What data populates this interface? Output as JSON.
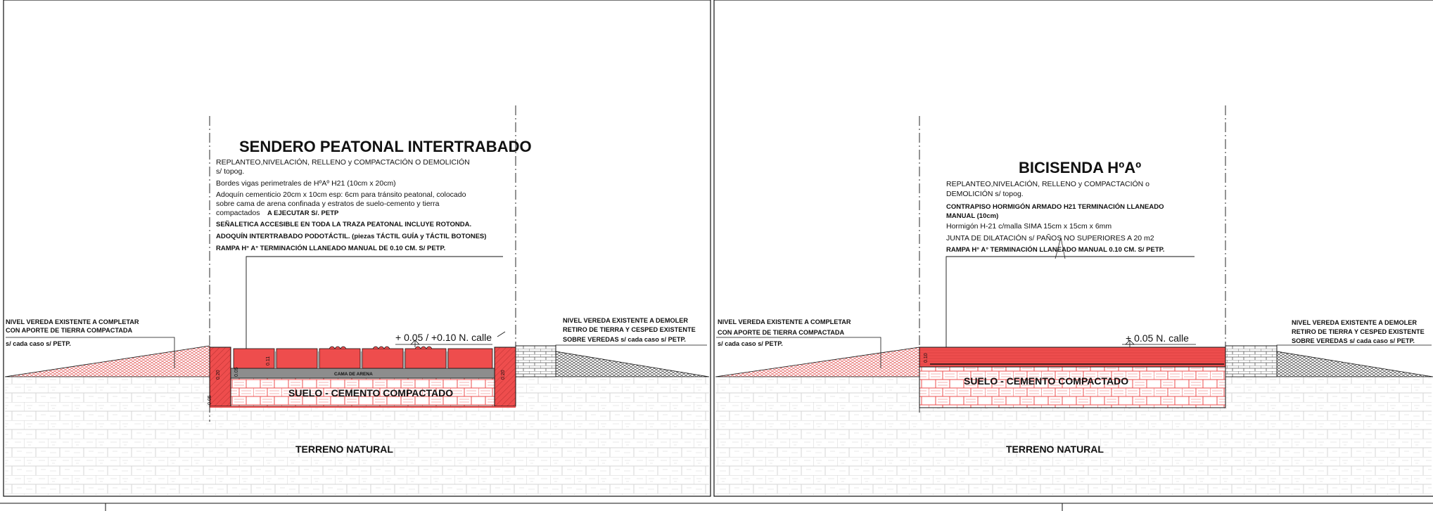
{
  "left_panel": {
    "title": "SENDERO PEATONAL INTERTRABADO",
    "notes": [
      "REPLANTEO,NIVELACIÓN, RELLENO y COMPACTACIÓN O DEMOLICIÓN",
      "s/ topog.",
      "Bordes vigas perimetrales de HºAº H21 (10cm x 20cm)",
      "Adoquín cementicio 20cm x 10cm esp: 6cm para tránsito peatonal, colocado",
      "sobre cama de arena confinada y estratos de suelo-cemento y tierra",
      "compactados",
      "SEÑALETICA ACCESIBLE  EN TODA LA TRAZA PEATONAL INCLUYE ROTONDA.",
      "ADOQUÍN INTERTRABADO PODOTÁCTIL. (piezas TÁCTIL GUÍA y TÁCTIL BOTONES)",
      "RAMPA H° A°  TERMINACIÓN LLANEADO MANUAL DE 0.10 CM.  S/ PETP."
    ],
    "notes_inline_bold": "A EJECUTAR S/. PETP",
    "left_side_note": [
      "NIVEL VEREDA EXISTENTE A COMPLETAR",
      "CON APORTE DE TIERRA COMPACTADA",
      "s/ cada caso s/ PETP."
    ],
    "right_side_note": [
      "NIVEL VEREDA EXISTENTE A DEMOLER",
      "RETIRO DE TIERRA Y CESPED EXISTENTE",
      "SOBRE VEREDAS s/ cada caso s/ PETP."
    ],
    "level": "+ 0.05 / +0.10 N. calle",
    "bed_label": "CAMA DE ARENA",
    "base_label": "SUELO - CEMENTO COMPACTADO",
    "ground_label": "TERRENO NATURAL",
    "dims": {
      "edge_left": "0.20",
      "edge_right": "0.20",
      "paver": "0.11",
      "bed": "0.05",
      "bottom": "0.05"
    }
  },
  "right_panel": {
    "title": "BICISENDA HºAº",
    "notes": [
      "REPLANTEO,NIVELACIÓN, RELLENO y COMPACTACIÓN o",
      "DEMOLICIÓN s/ topog.",
      "CONTRAPISO HORMIGÓN ARMADO  H21  TERMINACIÓN  LLANEADO",
      "MANUAL  (10cm)",
      "Hormigón H-21 c/malla SIMA 15cm x 15cm x 6mm",
      "JUNTA DE DILATACIÓN s/ PAÑOS NO SUPERIORES A 20 m2",
      "RAMPA H° A° TERMINACIÓN LLANEADO MANUAL 0.10 CM.  S/ PETP."
    ],
    "left_side_note": [
      "NIVEL VEREDA EXISTENTE A COMPLETAR",
      "CON APORTE DE TIERRA COMPACTADA",
      "s/ cada caso s/ PETP."
    ],
    "right_side_note": [
      "NIVEL VEREDA EXISTENTE A DEMOLER",
      "RETIRO DE TIERRA Y CESPED EXISTENTE",
      "SOBRE VEREDAS s/ cada caso s/ PETP."
    ],
    "level": "+ 0.05 N. calle",
    "base_label": "SUELO - CEMENTO COMPACTADO",
    "ground_label": "TERRENO NATURAL",
    "dims": {
      "slab": "0.10"
    }
  },
  "colors": {
    "red": "#ee4d4d",
    "red_light": "#f7a5a5",
    "line": "#111111",
    "hatch": "#cfcfcf",
    "grey": "#8a8a8a"
  }
}
